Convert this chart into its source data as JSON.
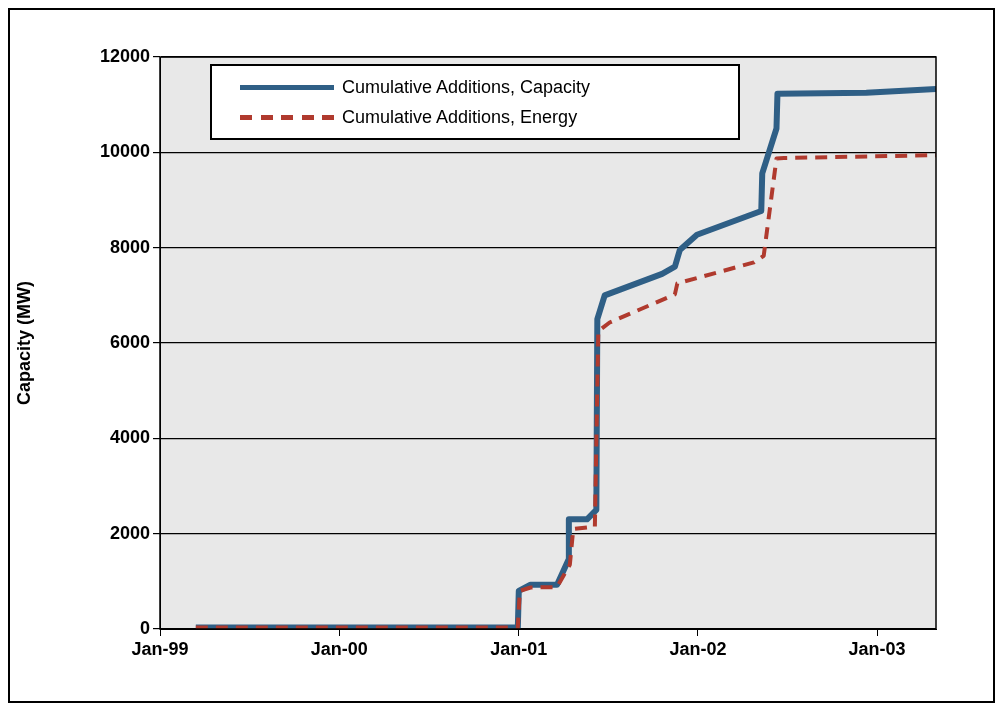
{
  "chart_data": {
    "type": "line",
    "ylabel": "Capacity (MW)",
    "xlim": [
      "1999-01-01",
      "2003-05-01"
    ],
    "xticks": [
      {
        "value": "1999-01-01",
        "label": "Jan-99"
      },
      {
        "value": "2000-01-01",
        "label": "Jan-00"
      },
      {
        "value": "2001-01-01",
        "label": "Jan-01"
      },
      {
        "value": "2002-01-01",
        "label": "Jan-02"
      },
      {
        "value": "2003-01-01",
        "label": "Jan-03"
      }
    ],
    "ylim": [
      0,
      12000
    ],
    "yticks": [
      0,
      2000,
      4000,
      6000,
      8000,
      10000,
      12000
    ],
    "grid": "y",
    "legend": "top left",
    "marker": "none",
    "series": [
      {
        "name": "Cumulative Additions, Capacity",
        "color": "#2f5f86",
        "line_style": "solid",
        "x": [
          "1999-03-15",
          "2000-12-30",
          "2001-01-01",
          "2001-01-25",
          "2001-03-20",
          "2001-04-12",
          "2001-04-13",
          "2001-05-20",
          "2001-06-08",
          "2001-06-10",
          "2001-06-25",
          "2001-10-20",
          "2001-11-15",
          "2001-11-25",
          "2001-12-30",
          "2002-05-10",
          "2002-05-12",
          "2002-06-10",
          "2002-06-12",
          "2002-12-10",
          "2003-05-01"
        ],
        "values": [
          30,
          30,
          800,
          930,
          930,
          1450,
          2300,
          2300,
          2500,
          6500,
          7000,
          7450,
          7600,
          7950,
          8270,
          8770,
          9560,
          10500,
          11230,
          11250,
          11330
        ]
      },
      {
        "name": "Cumulative Additions, Energy",
        "color": "#b03a2e",
        "line_style": "dashed",
        "x": [
          "1999-03-15",
          "2000-12-30",
          "2001-01-03",
          "2001-01-25",
          "2001-03-20",
          "2001-04-15",
          "2001-04-22",
          "2001-06-05",
          "2001-06-12",
          "2001-07-05",
          "2001-11-15",
          "2001-11-20",
          "2002-04-25",
          "2002-05-15",
          "2002-06-10",
          "2002-06-25",
          "2003-05-01"
        ],
        "values": [
          30,
          30,
          800,
          870,
          880,
          1350,
          2100,
          2150,
          6250,
          6430,
          7020,
          7250,
          7690,
          7830,
          9870,
          9880,
          9940
        ]
      }
    ]
  }
}
